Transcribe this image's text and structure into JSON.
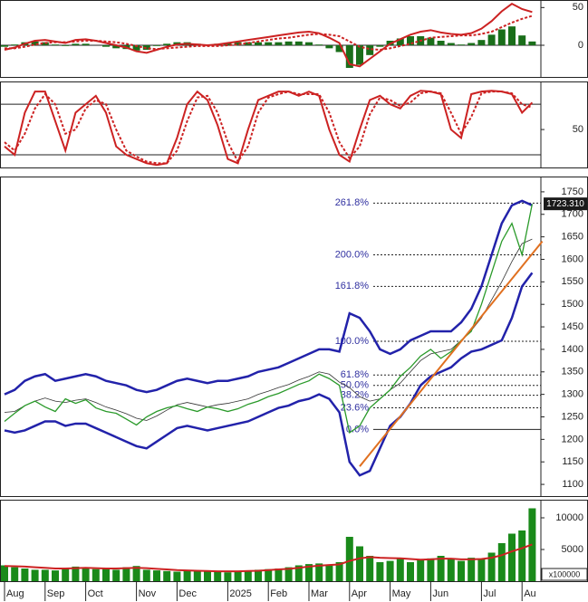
{
  "chart_data": [
    {
      "type": "line",
      "ylim": [
        -42,
        60
      ],
      "yticks": [
        0,
        50
      ],
      "series": [
        {
          "type": "bar",
          "color": "#1a6e1a",
          "values": [
            -2,
            1,
            4,
            5,
            4,
            1,
            -1,
            2,
            2,
            0,
            -2,
            -4,
            -5,
            -7,
            -6,
            -1,
            2,
            4,
            4,
            2,
            1,
            2,
            3,
            4,
            4,
            4,
            4,
            4,
            5,
            5,
            4,
            1,
            -4,
            -9,
            -30,
            -26,
            -13,
            -2,
            6,
            9,
            12,
            12,
            10,
            6,
            3,
            1,
            3,
            7,
            14,
            21,
            25,
            13,
            5
          ]
        },
        {
          "color": "#cc2222",
          "values": [
            -6,
            -3,
            2,
            6,
            7,
            5,
            3,
            7,
            8,
            6,
            3,
            0,
            -3,
            -8,
            -10,
            -6,
            -2,
            1,
            2,
            1,
            0,
            1,
            3,
            5,
            7,
            9,
            11,
            13,
            15,
            17,
            18,
            16,
            10,
            3,
            -25,
            -28,
            -18,
            -8,
            2,
            8,
            14,
            18,
            20,
            17,
            15,
            14,
            16,
            22,
            32,
            45,
            55,
            48,
            44
          ]
        },
        {
          "color": "#cc2222",
          "dash": true,
          "values": [
            -4,
            -4,
            -2,
            1,
            3,
            4,
            4,
            5,
            6,
            6,
            5,
            4,
            2,
            -1,
            -4,
            -5,
            -4,
            -3,
            -2,
            -1,
            -1,
            -1,
            0,
            1,
            3,
            5,
            7,
            9,
            10,
            12,
            14,
            15,
            14,
            12,
            5,
            -2,
            -5,
            -6,
            -4,
            -1,
            2,
            6,
            10,
            11,
            12,
            13,
            13,
            15,
            18,
            24,
            30,
            35,
            39
          ]
        }
      ]
    },
    {
      "type": "line",
      "ylim": [
        5,
        107
      ],
      "yticks": [
        50
      ],
      "hlines": [
        80,
        20
      ],
      "series": [
        {
          "color": "#cc2222",
          "values": [
            30,
            20,
            70,
            95,
            95,
            60,
            25,
            70,
            80,
            90,
            70,
            30,
            20,
            15,
            10,
            8,
            10,
            40,
            80,
            95,
            85,
            55,
            15,
            10,
            50,
            85,
            90,
            95,
            95,
            90,
            95,
            90,
            50,
            20,
            12,
            50,
            85,
            90,
            80,
            75,
            90,
            96,
            95,
            92,
            50,
            40,
            92,
            95,
            96,
            95,
            92,
            70,
            82
          ]
        },
        {
          "color": "#cc2222",
          "dash": true,
          "values": [
            35,
            25,
            45,
            75,
            92,
            80,
            45,
            50,
            75,
            85,
            80,
            50,
            25,
            18,
            12,
            10,
            10,
            25,
            60,
            88,
            90,
            70,
            35,
            12,
            30,
            70,
            88,
            92,
            95,
            92,
            92,
            92,
            70,
            35,
            16,
            30,
            68,
            88,
            85,
            78,
            82,
            93,
            95,
            93,
            70,
            45,
            65,
            93,
            95,
            95,
            93,
            80,
            76
          ]
        }
      ]
    },
    {
      "type": "line",
      "ylim": [
        1074,
        1784
      ],
      "yticks": [
        1100,
        1150,
        1200,
        1250,
        1300,
        1350,
        1400,
        1450,
        1500,
        1550,
        1600,
        1650,
        1700,
        1750
      ],
      "series": [
        {
          "color": "#2222aa",
          "width": 2.5,
          "values": [
            1300,
            1310,
            1330,
            1340,
            1345,
            1330,
            1335,
            1340,
            1345,
            1340,
            1330,
            1325,
            1320,
            1310,
            1305,
            1310,
            1320,
            1330,
            1335,
            1330,
            1325,
            1330,
            1330,
            1335,
            1340,
            1350,
            1355,
            1360,
            1370,
            1380,
            1390,
            1400,
            1400,
            1395,
            1480,
            1470,
            1440,
            1400,
            1390,
            1400,
            1420,
            1430,
            1440,
            1440,
            1440,
            1460,
            1490,
            1540,
            1610,
            1680,
            1720,
            1730,
            1720
          ]
        },
        {
          "color": "#2222aa",
          "width": 2.5,
          "values": [
            1220,
            1215,
            1220,
            1230,
            1240,
            1240,
            1230,
            1235,
            1235,
            1225,
            1215,
            1205,
            1195,
            1185,
            1180,
            1195,
            1210,
            1225,
            1230,
            1225,
            1220,
            1225,
            1230,
            1235,
            1240,
            1250,
            1260,
            1270,
            1275,
            1285,
            1290,
            1300,
            1290,
            1260,
            1150,
            1120,
            1130,
            1180,
            1230,
            1250,
            1280,
            1320,
            1340,
            1350,
            1360,
            1380,
            1395,
            1400,
            1410,
            1420,
            1470,
            1540,
            1570
          ]
        },
        {
          "color": "#333333",
          "width": 0.8,
          "values": [
            1260,
            1262,
            1275,
            1285,
            1292,
            1285,
            1282,
            1287,
            1290,
            1282,
            1272,
            1265,
            1257,
            1247,
            1242,
            1252,
            1265,
            1277,
            1282,
            1277,
            1272,
            1277,
            1280,
            1285,
            1290,
            1300,
            1307,
            1315,
            1322,
            1332,
            1340,
            1350,
            1345,
            1327,
            1315,
            1295,
            1285,
            1290,
            1310,
            1325,
            1350,
            1375,
            1390,
            1395,
            1400,
            1420,
            1442,
            1470,
            1510,
            1550,
            1595,
            1635,
            1645
          ]
        },
        {
          "color": "#2a9a2a",
          "width": 1.3,
          "values": [
            1240,
            1258,
            1275,
            1285,
            1272,
            1262,
            1290,
            1280,
            1288,
            1270,
            1262,
            1258,
            1245,
            1232,
            1250,
            1262,
            1270,
            1275,
            1268,
            1262,
            1272,
            1268,
            1262,
            1268,
            1278,
            1285,
            1295,
            1302,
            1312,
            1322,
            1330,
            1345,
            1335,
            1320,
            1215,
            1230,
            1270,
            1290,
            1310,
            1340,
            1360,
            1385,
            1400,
            1380,
            1395,
            1420,
            1440,
            1500,
            1570,
            1640,
            1680,
            1610,
            1723
          ]
        }
      ],
      "levels": [
        {
          "label": "261.8%",
          "value": 1725
        },
        {
          "label": "200.0%",
          "value": 1610
        },
        {
          "label": "161.8%",
          "value": 1540
        },
        {
          "label": "100.0%",
          "value": 1418
        },
        {
          "label": "61.8%",
          "value": 1343
        },
        {
          "label": "50.0%",
          "value": 1320
        },
        {
          "label": "38.2%",
          "value": 1298
        },
        {
          "label": "23.6%",
          "value": 1270
        },
        {
          "label": "0.0%",
          "value": 1222
        }
      ],
      "trendline": {
        "color": "#e07020",
        "x": [
          35,
          53
        ],
        "values": [
          1140,
          1640
        ]
      },
      "last_price": {
        "value": 1723.31,
        "label": "1723.310"
      }
    },
    {
      "type": "bar",
      "ylim": [
        0,
        12857
      ],
      "yticks": [
        5000,
        10000
      ],
      "unit_label": "x100000",
      "categories": [
        "Aug",
        null,
        null,
        null,
        "Sep",
        null,
        null,
        null,
        "Oct",
        null,
        null,
        null,
        null,
        "Nov",
        null,
        null,
        null,
        "Dec",
        null,
        null,
        null,
        null,
        "2025",
        null,
        null,
        null,
        "Feb",
        null,
        null,
        null,
        "Mar",
        null,
        null,
        null,
        "Apr",
        null,
        null,
        null,
        "May",
        null,
        null,
        null,
        "Jun",
        null,
        null,
        null,
        null,
        "Jul",
        null,
        null,
        null,
        "Au",
        null
      ],
      "series": [
        {
          "type": "bar",
          "color": "#1a8a1a",
          "values": [
            2500,
            2200,
            2000,
            1800,
            1800,
            1700,
            2100,
            2300,
            2000,
            1900,
            2100,
            1800,
            2200,
            2400,
            1800,
            1700,
            1600,
            1500,
            1700,
            1600,
            1500,
            1500,
            1400,
            1500,
            1600,
            1800,
            1900,
            2000,
            2200,
            2500,
            2700,
            2800,
            2600,
            3000,
            7000,
            5500,
            4000,
            3000,
            3200,
            3500,
            3000,
            3400,
            3600,
            4000,
            3500,
            3200,
            3700,
            3500,
            4500,
            6000,
            7500,
            8000,
            11500
          ]
        },
        {
          "color": "#cc2222",
          "width": 2,
          "values": [
            2400,
            2350,
            2300,
            2200,
            2100,
            2000,
            2000,
            2050,
            2100,
            2050,
            2000,
            2000,
            2050,
            2100,
            2050,
            1950,
            1850,
            1750,
            1700,
            1650,
            1600,
            1550,
            1550,
            1550,
            1600,
            1650,
            1750,
            1850,
            1950,
            2100,
            2300,
            2450,
            2550,
            2650,
            3200,
            3600,
            3800,
            3700,
            3650,
            3600,
            3500,
            3400,
            3450,
            3550,
            3550,
            3450,
            3450,
            3500,
            3700,
            4100,
            4700,
            5200,
            5800
          ]
        }
      ]
    }
  ]
}
